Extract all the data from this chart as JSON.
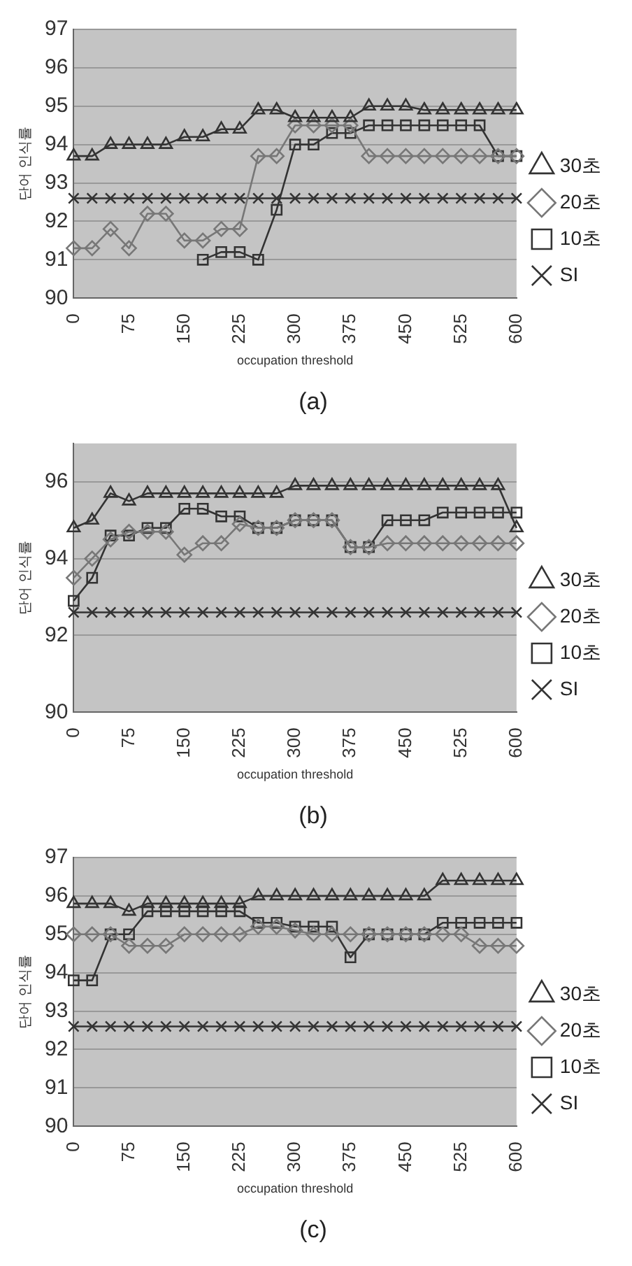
{
  "chart_data": [
    {
      "type": "line",
      "title": "(a)",
      "xlabel": "occupation threshold",
      "ylabel": "단어 인식률",
      "categories": [
        "0",
        null,
        null,
        "75",
        null,
        null,
        "150",
        null,
        null,
        "225",
        null,
        null,
        "300",
        null,
        null,
        "375",
        null,
        null,
        "450",
        null,
        null,
        "525",
        null,
        null,
        "600"
      ],
      "ylim": [
        90,
        97
      ],
      "yticks": [
        90,
        91,
        92,
        93,
        94,
        95,
        96,
        97
      ],
      "grid": "y",
      "legend": "right",
      "series": [
        {
          "name": "30초",
          "color": "#333333",
          "marker": "triangle",
          "values": [
            93.7,
            93.7,
            94,
            94,
            94,
            94,
            94.2,
            94.2,
            94.4,
            94.4,
            94.9,
            94.9,
            94.7,
            94.7,
            94.7,
            94.7,
            95,
            95,
            95,
            94.9,
            94.9,
            94.9,
            94.9,
            94.9,
            94.9
          ]
        },
        {
          "name": "20초",
          "color": "#777777",
          "marker": "diamond",
          "values": [
            91.3,
            91.3,
            91.8,
            91.3,
            92.2,
            92.2,
            91.5,
            91.5,
            91.8,
            91.8,
            93.7,
            93.7,
            94.5,
            94.5,
            94.5,
            94.5,
            93.7,
            93.7,
            93.7,
            93.7,
            93.7,
            93.7,
            93.7,
            93.7,
            93.7
          ]
        },
        {
          "name": "10초",
          "color": "#333333",
          "marker": "square",
          "values": [
            null,
            null,
            null,
            null,
            null,
            null,
            null,
            91,
            91.2,
            91.2,
            91,
            92.3,
            94,
            94,
            94.3,
            94.3,
            94.5,
            94.5,
            94.5,
            94.5,
            94.5,
            94.5,
            94.5,
            93.7,
            93.7
          ]
        },
        {
          "name": "SI",
          "color": "#333333",
          "marker": "cross",
          "values": [
            92.6,
            92.6,
            92.6,
            92.6,
            92.6,
            92.6,
            92.6,
            92.6,
            92.6,
            92.6,
            92.6,
            92.6,
            92.6,
            92.6,
            92.6,
            92.6,
            92.6,
            92.6,
            92.6,
            92.6,
            92.6,
            92.6,
            92.6,
            92.6,
            92.6
          ]
        }
      ]
    },
    {
      "type": "line",
      "title": "(b)",
      "xlabel": "occupation threshold",
      "ylabel": "단어 인식률",
      "categories": [
        "0",
        null,
        null,
        "75",
        null,
        null,
        "150",
        null,
        null,
        "225",
        null,
        null,
        "300",
        null,
        null,
        "375",
        null,
        null,
        "450",
        null,
        null,
        "525",
        null,
        null,
        "600"
      ],
      "ylim": [
        90,
        97
      ],
      "yticks": [
        90,
        92,
        94,
        96
      ],
      "grid": "y",
      "legend": "right",
      "series": [
        {
          "name": "30초",
          "color": "#333333",
          "marker": "triangle",
          "values": [
            94.8,
            95,
            95.7,
            95.5,
            95.7,
            95.7,
            95.7,
            95.7,
            95.7,
            95.7,
            95.7,
            95.7,
            95.9,
            95.9,
            95.9,
            95.9,
            95.9,
            95.9,
            95.9,
            95.9,
            95.9,
            95.9,
            95.9,
            95.9,
            94.8
          ]
        },
        {
          "name": "20초",
          "color": "#777777",
          "marker": "diamond",
          "values": [
            93.5,
            94,
            94.5,
            94.7,
            94.7,
            94.7,
            94.1,
            94.4,
            94.4,
            94.9,
            94.8,
            94.8,
            95,
            95,
            95,
            94.3,
            94.3,
            94.4,
            94.4,
            94.4,
            94.4,
            94.4,
            94.4,
            94.4,
            94.4
          ]
        },
        {
          "name": "10초",
          "color": "#333333",
          "marker": "square",
          "values": [
            92.9,
            93.5,
            94.6,
            94.6,
            94.8,
            94.8,
            95.3,
            95.3,
            95.1,
            95.1,
            94.8,
            94.8,
            95,
            95,
            95,
            94.3,
            94.3,
            95,
            95,
            95,
            95.2,
            95.2,
            95.2,
            95.2,
            95.2
          ]
        },
        {
          "name": "SI",
          "color": "#333333",
          "marker": "cross",
          "values": [
            92.6,
            92.6,
            92.6,
            92.6,
            92.6,
            92.6,
            92.6,
            92.6,
            92.6,
            92.6,
            92.6,
            92.6,
            92.6,
            92.6,
            92.6,
            92.6,
            92.6,
            92.6,
            92.6,
            92.6,
            92.6,
            92.6,
            92.6,
            92.6,
            92.6
          ]
        }
      ]
    },
    {
      "type": "line",
      "title": "(c)",
      "xlabel": "occupation threshold",
      "ylabel": "단어 인식률",
      "categories": [
        "0",
        null,
        null,
        "75",
        null,
        null,
        "150",
        null,
        null,
        "225",
        null,
        null,
        "300",
        null,
        null,
        "375",
        null,
        null,
        "450",
        null,
        null,
        "525",
        null,
        null,
        "600"
      ],
      "ylim": [
        90,
        97
      ],
      "yticks": [
        90,
        91,
        92,
        93,
        94,
        95,
        96,
        97
      ],
      "grid": "y",
      "legend": "right",
      "series": [
        {
          "name": "30초",
          "color": "#333333",
          "marker": "triangle",
          "values": [
            95.8,
            95.8,
            95.8,
            95.6,
            95.8,
            95.8,
            95.8,
            95.8,
            95.8,
            95.8,
            96,
            96,
            96,
            96,
            96,
            96,
            96,
            96,
            96,
            96,
            96.4,
            96.4,
            96.4,
            96.4,
            96.4
          ]
        },
        {
          "name": "20초",
          "color": "#777777",
          "marker": "diamond",
          "values": [
            95,
            95,
            95,
            94.7,
            94.7,
            94.7,
            95,
            95,
            95,
            95,
            95.2,
            95.2,
            95.1,
            95,
            95,
            95,
            95,
            95,
            95,
            95,
            95,
            95,
            94.7,
            94.7,
            94.7
          ]
        },
        {
          "name": "10초",
          "color": "#333333",
          "marker": "square",
          "values": [
            93.8,
            93.8,
            95,
            95,
            95.6,
            95.6,
            95.6,
            95.6,
            95.6,
            95.6,
            95.3,
            95.3,
            95.2,
            95.2,
            95.2,
            94.4,
            95,
            95,
            95,
            95,
            95.3,
            95.3,
            95.3,
            95.3,
            95.3
          ]
        },
        {
          "name": "SI",
          "color": "#333333",
          "marker": "cross",
          "values": [
            92.6,
            92.6,
            92.6,
            92.6,
            92.6,
            92.6,
            92.6,
            92.6,
            92.6,
            92.6,
            92.6,
            92.6,
            92.6,
            92.6,
            92.6,
            92.6,
            92.6,
            92.6,
            92.6,
            92.6,
            92.6,
            92.6,
            92.6,
            92.6,
            92.6
          ]
        }
      ]
    }
  ]
}
